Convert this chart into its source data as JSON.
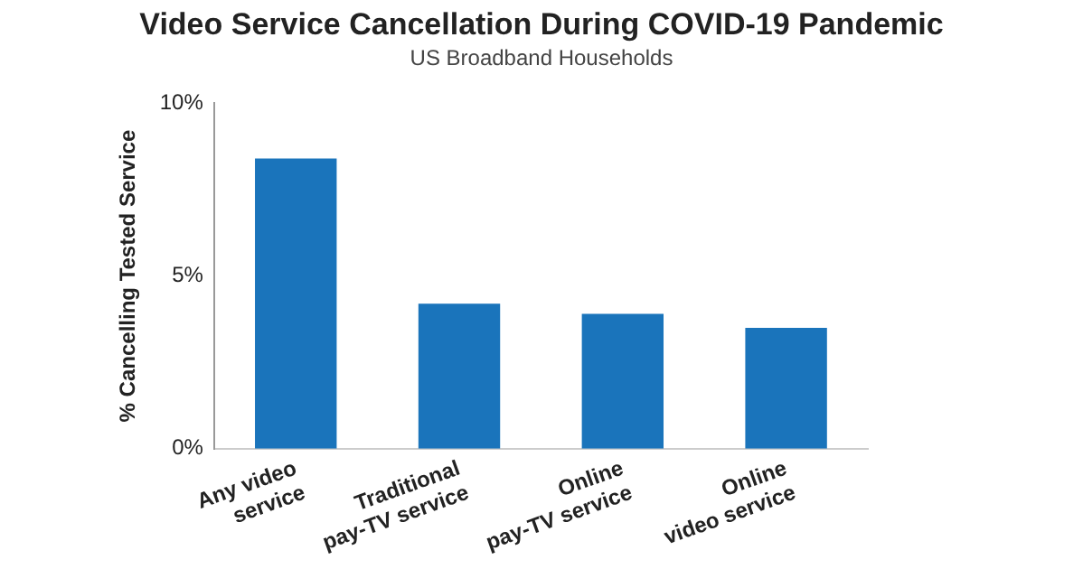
{
  "chart_data": {
    "type": "bar",
    "title": "Video Service Cancellation During COVID-19 Pandemic",
    "subtitle": "US Broadband Households",
    "ylabel": "% Cancelling Tested Service",
    "categories": [
      "Any video\nservice",
      "Traditional\npay-TV service",
      "Online\npay-TV service",
      "Online\nvideo service"
    ],
    "values": [
      8.4,
      4.2,
      3.9,
      3.5
    ],
    "color": "#1a74bb",
    "ylim": [
      0,
      10
    ],
    "yticks": [
      {
        "value": 0,
        "label": "0%"
      },
      {
        "value": 5,
        "label": "5%"
      },
      {
        "value": 10,
        "label": "10%"
      }
    ],
    "grid": false,
    "legend": false
  }
}
